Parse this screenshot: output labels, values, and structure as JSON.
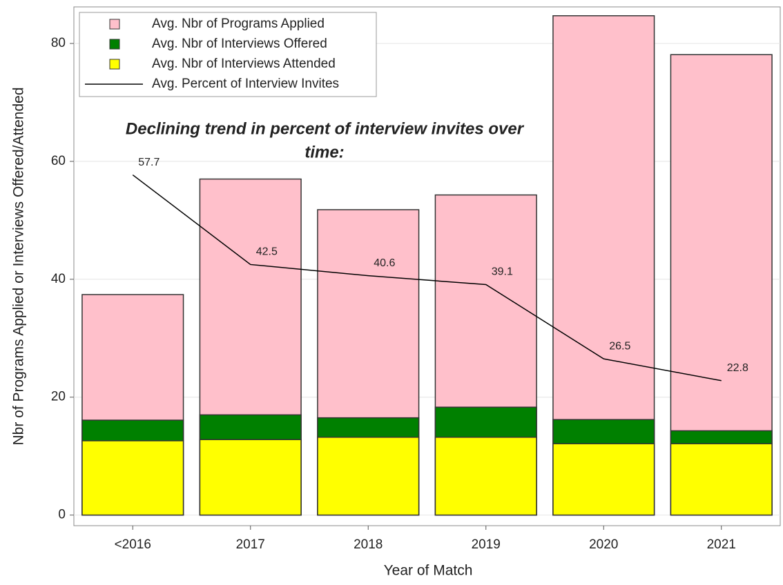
{
  "chart_data": {
    "type": "bar",
    "bar_mode": "overlay",
    "x_label": "Year of Match",
    "y_label": "Nbr of Programs Applied or Interviews Offered/Attended",
    "annotation": [
      "Declining trend in percent of interview invites over",
      "time:"
    ],
    "categories": [
      "<2016",
      "2017",
      "2018",
      "2019",
      "2020",
      "2021"
    ],
    "series": [
      {
        "name": "Avg. Nbr of Programs Applied",
        "type": "bar",
        "color": "#ffc0cb",
        "values": [
          37.4,
          57.0,
          51.8,
          54.3,
          84.7,
          78.1
        ]
      },
      {
        "name": "Avg. Nbr of Interviews Offered",
        "type": "bar",
        "color": "#008000",
        "values": [
          16.1,
          17.0,
          16.5,
          18.3,
          16.2,
          14.3
        ]
      },
      {
        "name": "Avg. Nbr of Interviews Attended",
        "type": "bar",
        "color": "#ffff00",
        "values": [
          12.6,
          12.8,
          13.2,
          13.2,
          12.1,
          12.1
        ]
      },
      {
        "name": "Avg. Percent of Interview Invites",
        "type": "line",
        "color": "#000000",
        "values": [
          57.7,
          42.5,
          40.6,
          39.1,
          26.5,
          22.8
        ],
        "data_labels": true
      }
    ],
    "ylim": [
      -1.8,
      86.2
    ],
    "yticks": [
      0,
      20,
      40,
      60,
      80
    ],
    "grid": true,
    "legend": "top-left"
  }
}
